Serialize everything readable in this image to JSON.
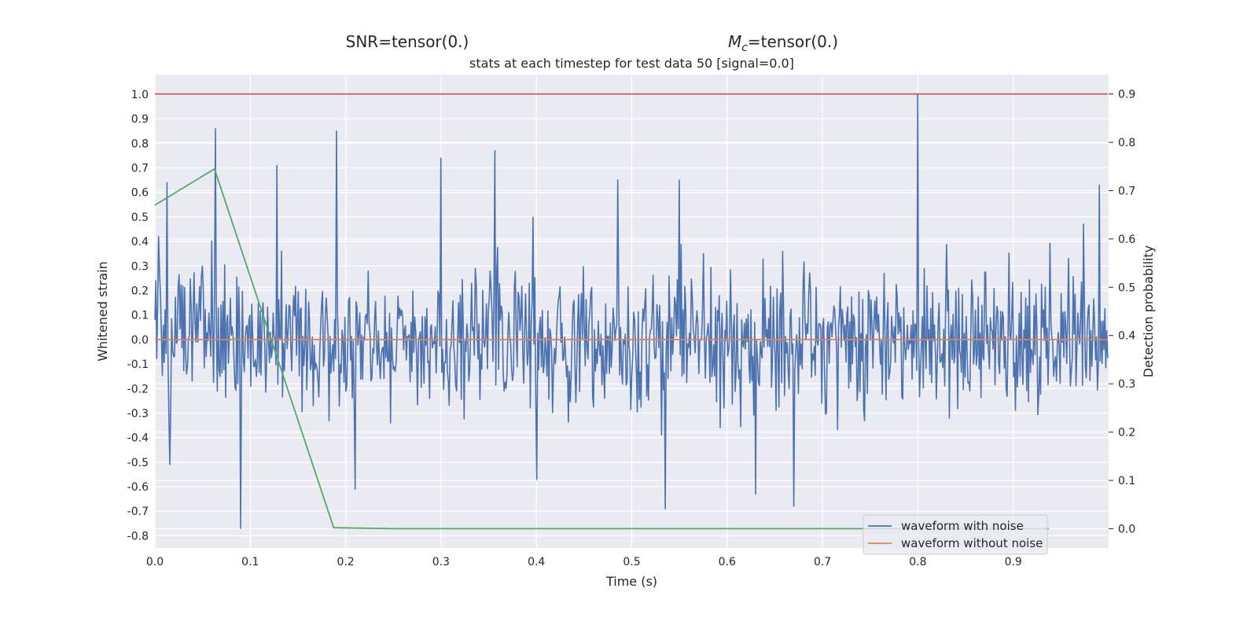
{
  "chart_data": {
    "type": "line",
    "suptitle_left": "SNR=tensor(0.)",
    "suptitle_right_prefix": "M",
    "suptitle_right_sub": "c",
    "suptitle_right_suffix": "=tensor(0.)",
    "title": "stats at each timestep for test data 50 [signal=0.0]",
    "xlabel": "Time (s)",
    "ylabel": "Whitened strain",
    "ylabel_right": "Detection probability",
    "xlim": [
      0.0,
      1.0
    ],
    "ylim": [
      -0.85,
      1.08
    ],
    "ylim_right": [
      -0.04,
      0.94
    ],
    "xticks": [
      "0.0",
      "0.1",
      "0.2",
      "0.3",
      "0.4",
      "0.5",
      "0.6",
      "0.7",
      "0.8",
      "0.9"
    ],
    "yticks": [
      "1.0",
      "0.9",
      "0.8",
      "0.7",
      "0.6",
      "0.5",
      "0.4",
      "0.3",
      "0.2",
      "0.1",
      "0.0",
      "-0.1",
      "-0.2",
      "-0.3",
      "-0.4",
      "-0.5",
      "-0.6",
      "-0.7",
      "-0.8"
    ],
    "yticks_right": [
      "0.9",
      "0.8",
      "0.7",
      "0.6",
      "0.5",
      "0.4",
      "0.3",
      "0.2",
      "0.1",
      "0.0"
    ],
    "grid": true,
    "legend_placement": "lower-right",
    "colors": {
      "noisy": "#4c72b0",
      "clean": "#dd8452",
      "prob": "#55a868",
      "threshold": "#c44e52",
      "background": "#eaeaf2",
      "grid": "#ffffff"
    },
    "series": [
      {
        "name": "waveform with noise",
        "axis": "left",
        "sample_rate": 1024,
        "x_range": [
          0.0,
          0.999
        ],
        "spikes_x": [
          0.0,
          0.013,
          0.016,
          0.063,
          0.09,
          0.128,
          0.19,
          0.21,
          0.3,
          0.356,
          0.4,
          0.485,
          0.535,
          0.55,
          0.63,
          0.67,
          0.8,
          0.99
        ],
        "spikes_y": [
          0.08,
          0.64,
          -0.51,
          0.86,
          -0.77,
          0.71,
          0.85,
          -0.61,
          0.74,
          0.77,
          -0.57,
          0.65,
          -0.69,
          0.65,
          -0.63,
          -0.68,
          1.0,
          0.63
        ]
      },
      {
        "name": "waveform without noise",
        "axis": "left",
        "x": [
          0.0,
          0.999
        ],
        "y": [
          0.0,
          0.0
        ]
      },
      {
        "name": "",
        "axis": "right",
        "x": [
          0.0,
          0.0625,
          0.1875,
          0.25,
          0.5,
          0.75,
          0.9375
        ],
        "y": [
          0.67,
          0.745,
          0.002,
          0.0,
          0.0,
          0.0,
          0.0
        ]
      },
      {
        "name": "",
        "axis": "right",
        "x": [
          0.0,
          0.999
        ],
        "y": [
          0.9,
          0.9
        ]
      }
    ]
  }
}
